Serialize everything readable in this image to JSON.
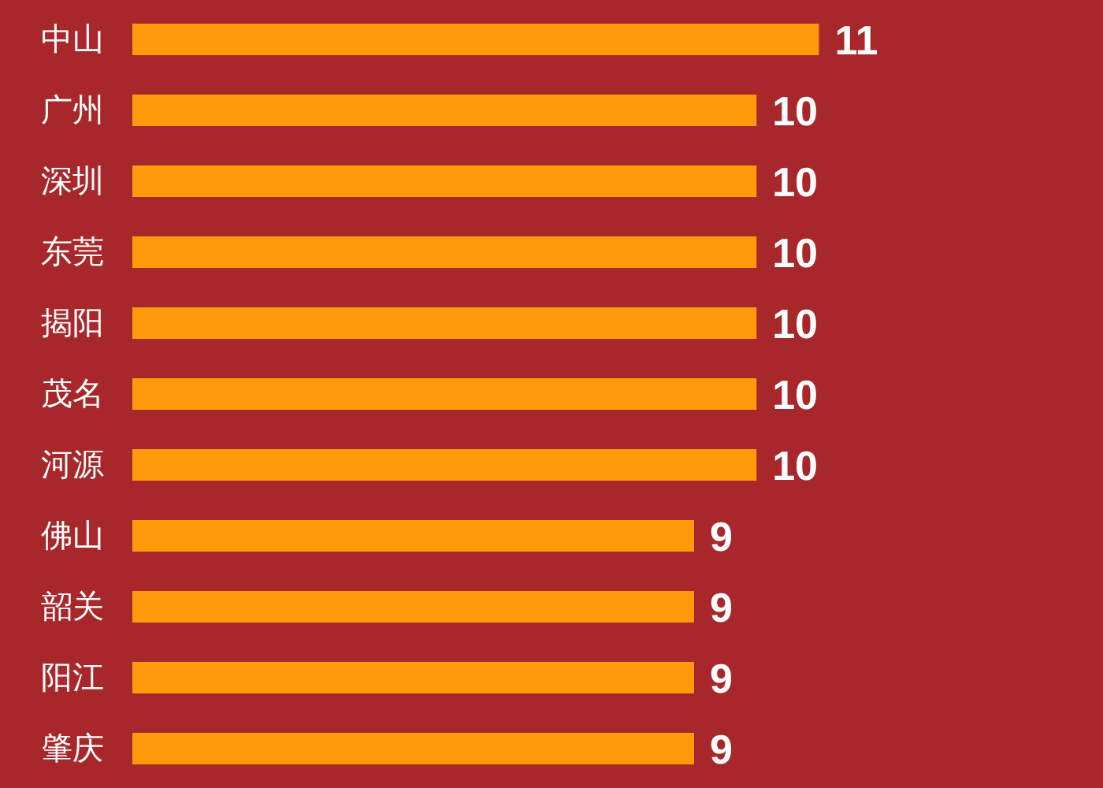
{
  "chart_data": {
    "type": "bar",
    "orientation": "horizontal",
    "categories": [
      "中山",
      "广州",
      "深圳",
      "东莞",
      "揭阳",
      "茂名",
      "河源",
      "佛山",
      "韶关",
      "阳江",
      "肇庆"
    ],
    "values": [
      11,
      10,
      10,
      10,
      10,
      10,
      10,
      9,
      9,
      9,
      9
    ],
    "color": "#ff9a0a",
    "data_labels": true,
    "grid": false,
    "legend": false
  }
}
